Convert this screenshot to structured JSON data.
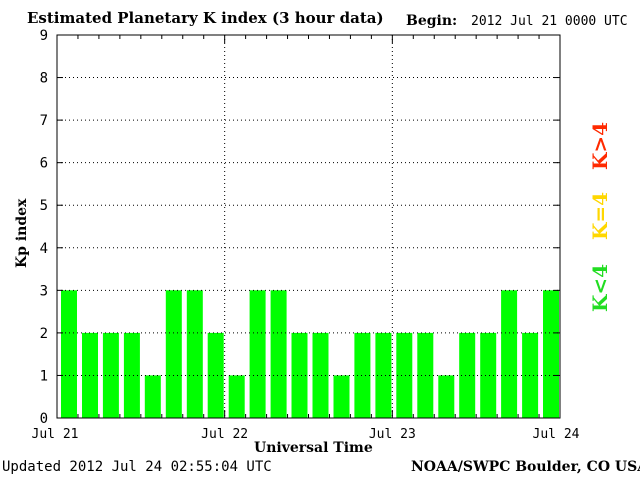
{
  "header": {
    "title": "Estimated Planetary K index (3 hour data)",
    "begin_label": "Begin:",
    "begin_value": "2012 Jul 21 0000 UTC"
  },
  "footer": {
    "updated": "Updated 2012 Jul 24 02:55:04 UTC",
    "source": "NOAA/SWPC Boulder, CO USA"
  },
  "legend": {
    "high": {
      "label": "K>4",
      "color": "#ff2a00"
    },
    "equal": {
      "label": "K=4",
      "color": "#ffd700"
    },
    "low": {
      "label": "K<4",
      "color": "#22dd22"
    }
  },
  "colors": {
    "bar": "#00ff00",
    "grid": "#000000"
  },
  "chart_data": {
    "type": "bar",
    "xlabel": "Universal Time",
    "ylabel": "Kp index",
    "ylim": [
      0,
      9
    ],
    "yticks": [
      "0",
      "1",
      "2",
      "3",
      "4",
      "5",
      "6",
      "7",
      "8",
      "9"
    ],
    "xticks": [
      "Jul 21",
      "Jul 22",
      "Jul 23",
      "Jul 24"
    ],
    "bars_per_day": 8,
    "values": [
      3,
      2,
      2,
      2,
      1,
      3,
      3,
      2,
      1,
      3,
      3,
      2,
      2,
      1,
      2,
      2,
      2,
      2,
      1,
      2,
      2,
      3,
      2,
      3
    ],
    "grid": "dotted, at each day and each integer Kp"
  }
}
